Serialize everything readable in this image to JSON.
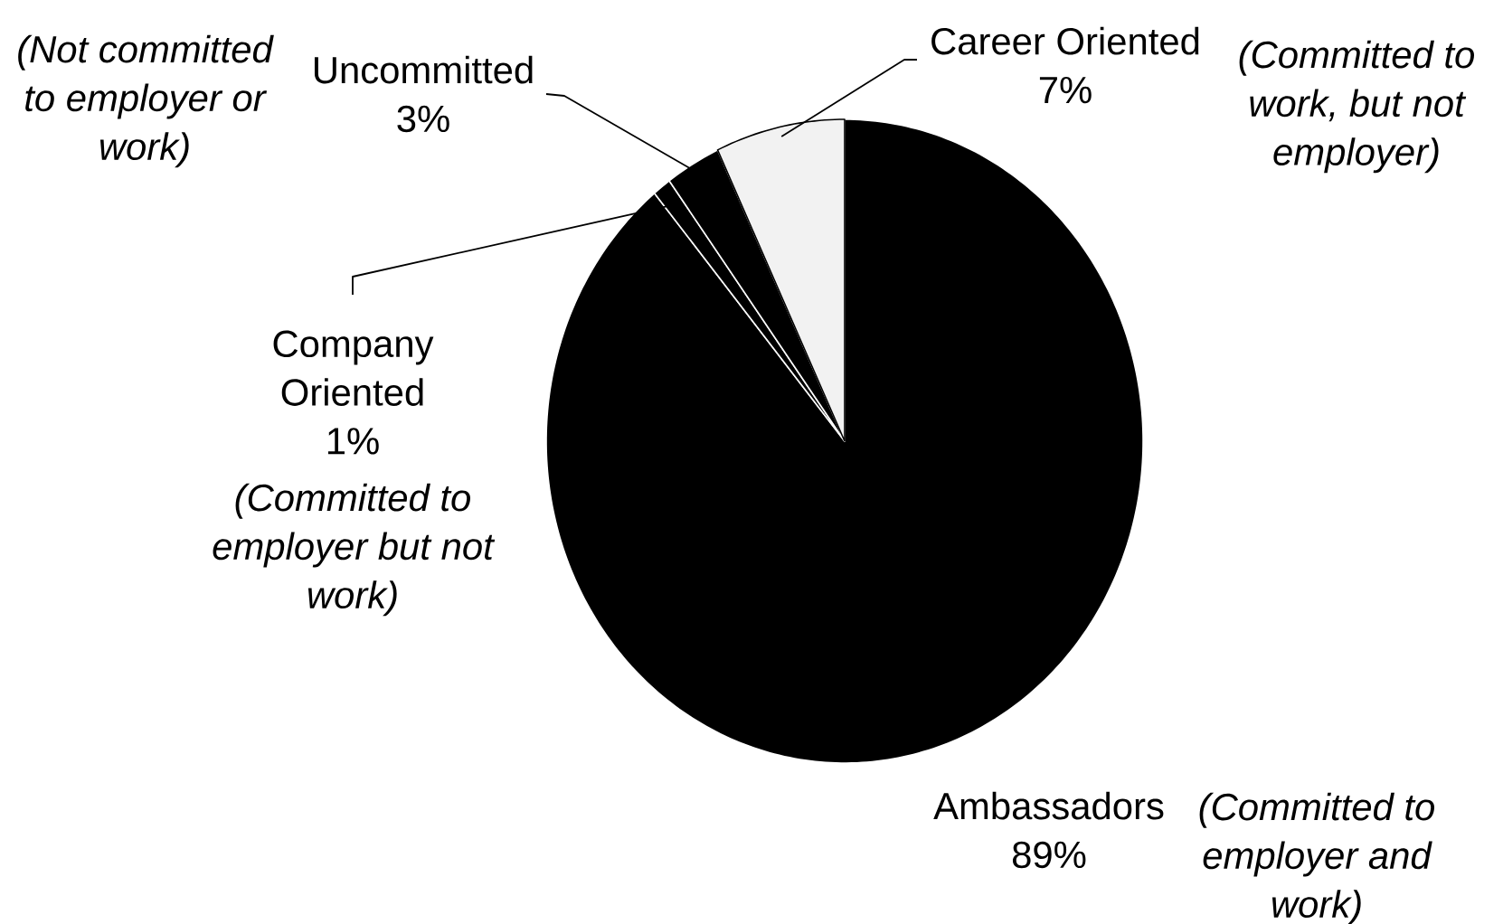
{
  "chart_data": {
    "type": "pie",
    "categories": [
      "Ambassadors",
      "Company Oriented",
      "Uncommitted",
      "Career Oriented"
    ],
    "values": [
      89,
      1,
      3,
      7
    ],
    "colors": [
      "#000000",
      "#000000",
      "#000000",
      "#f2f2f2"
    ],
    "value_labels": [
      "89%",
      "1%",
      "3%",
      "7%"
    ],
    "annotations": [
      "(Committed to employer and work)",
      "(Committed to employer but not work)",
      "(Not committed to employer or work)",
      "(Committed to work, but not employer)"
    ]
  }
}
